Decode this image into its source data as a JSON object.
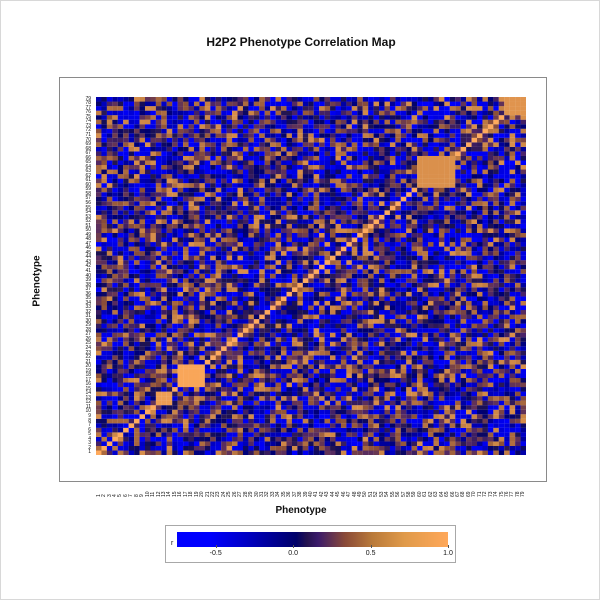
{
  "chart_data": {
    "type": "heatmap",
    "title": "H2P2 Phenotype Correlation Map",
    "xlabel": "Phenotype",
    "ylabel": "Phenotype",
    "x_categories": [
      "1",
      "2",
      "3",
      "4",
      "5",
      "6",
      "7",
      "8",
      "9",
      "10",
      "11",
      "12",
      "13",
      "14",
      "15",
      "16",
      "17",
      "18",
      "19",
      "20",
      "21",
      "22",
      "23",
      "24",
      "25",
      "26",
      "27",
      "28",
      "29",
      "30",
      "31",
      "32",
      "33",
      "34",
      "35",
      "36",
      "37",
      "38",
      "39",
      "40",
      "41",
      "42",
      "43",
      "44",
      "45",
      "46",
      "47",
      "48",
      "49",
      "50",
      "51",
      "52",
      "53",
      "54",
      "55",
      "56",
      "57",
      "58",
      "59",
      "60",
      "61",
      "62",
      "63",
      "64",
      "65",
      "66",
      "67",
      "68",
      "69",
      "70",
      "71",
      "72",
      "73",
      "74",
      "75",
      "76",
      "77",
      "78",
      "79"
    ],
    "y_categories": [
      "1",
      "2",
      "3",
      "4",
      "5",
      "6",
      "7",
      "8",
      "9",
      "10",
      "11",
      "12",
      "13",
      "14",
      "15",
      "16",
      "17",
      "18",
      "19",
      "20",
      "21",
      "22",
      "23",
      "24",
      "25",
      "26",
      "27",
      "28",
      "29",
      "30",
      "31",
      "32",
      "33",
      "34",
      "35",
      "36",
      "37",
      "38",
      "39",
      "40",
      "41",
      "42",
      "43",
      "44",
      "45",
      "46",
      "47",
      "48",
      "49",
      "50",
      "51",
      "52",
      "53",
      "54",
      "55",
      "56",
      "57",
      "58",
      "59",
      "60",
      "61",
      "62",
      "63",
      "64",
      "65",
      "66",
      "67",
      "68",
      "69",
      "70",
      "71",
      "72",
      "73",
      "74",
      "75",
      "76",
      "77",
      "78",
      "79"
    ],
    "value_range": [
      -0.75,
      1.0
    ],
    "diagonal_value": 1.0,
    "values_note": "",
    "highlight_blocks": [
      {
        "rows": [
          16,
          20
        ],
        "cols": [
          16,
          20
        ],
        "value": 0.95
      },
      {
        "rows": [
          12,
          14
        ],
        "cols": [
          12,
          14
        ],
        "value": 0.85
      },
      {
        "rows": [
          60,
          66
        ],
        "cols": [
          60,
          66
        ],
        "value": 0.7
      },
      {
        "rows": [
          76,
          79
        ],
        "cols": [
          76,
          79
        ],
        "value": 0.75
      }
    ],
    "legend": {
      "label": "r",
      "ticks": [
        "-0.5",
        "0.0",
        "0.5",
        "1.0"
      ],
      "tick_values": [
        -0.5,
        0.0,
        0.5,
        1.0
      ],
      "placement": "bottom-center",
      "colors": {
        "low": "#0000ff",
        "mid": "#000068",
        "high": "#ffa85a"
      }
    }
  }
}
